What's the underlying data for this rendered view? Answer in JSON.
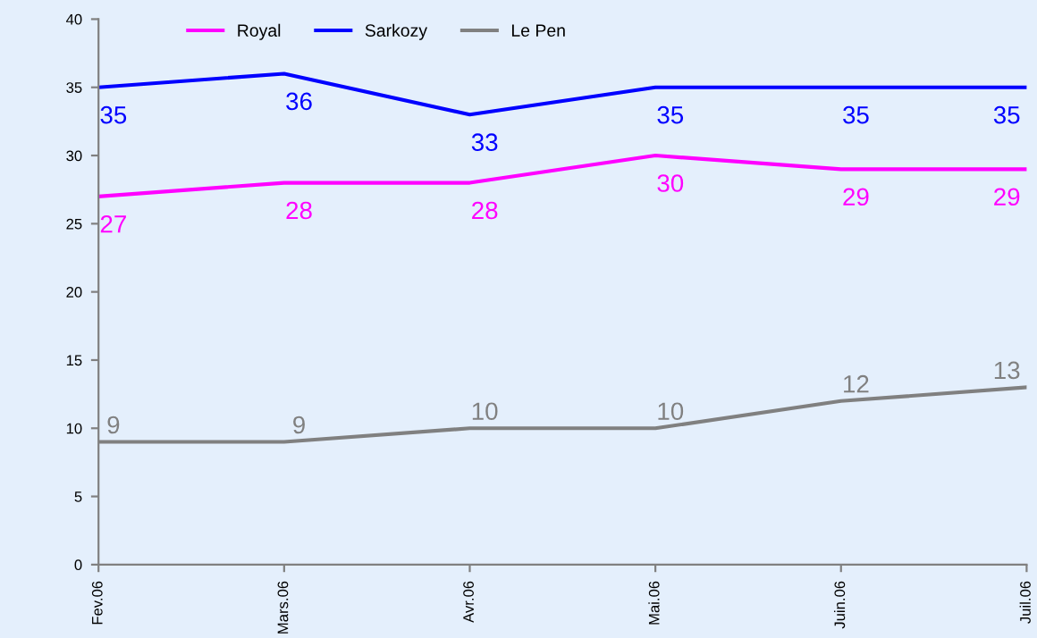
{
  "chart_data": {
    "type": "line",
    "categories": [
      "Fev.06",
      "Mars.06",
      "Avr.06",
      "Mai.06",
      "Juin.06",
      "Juil.06"
    ],
    "series": [
      {
        "name": "Royal",
        "color": "#ff00ff",
        "values": [
          27,
          28,
          28,
          30,
          29,
          29
        ]
      },
      {
        "name": "Sarkozy",
        "color": "#0000ff",
        "values": [
          35,
          36,
          33,
          35,
          35,
          35
        ]
      },
      {
        "name": "Le Pen",
        "color": "#808080",
        "values": [
          9,
          9,
          10,
          10,
          12,
          13
        ]
      }
    ],
    "ylim": [
      0,
      40
    ],
    "yticks": [
      0,
      5,
      10,
      15,
      20,
      25,
      30,
      35,
      40
    ],
    "grid": false,
    "legend": "top",
    "data_labels": true,
    "marker": "none",
    "line_style": "solid"
  }
}
